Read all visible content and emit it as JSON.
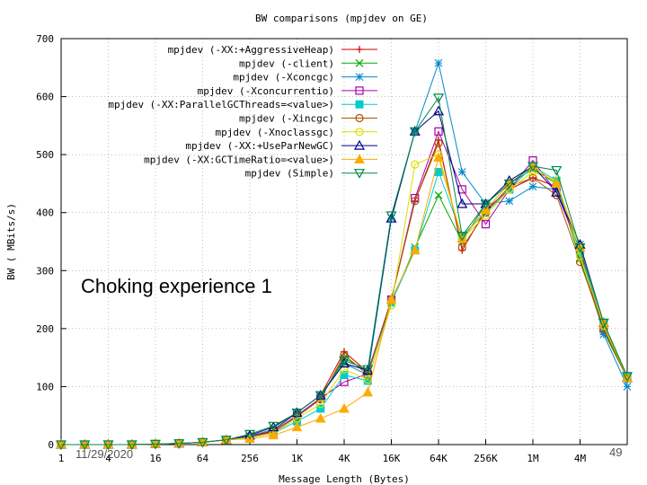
{
  "chart_data": {
    "type": "line",
    "title": "BW comparisons (mpjdev on GE)",
    "xlabel": "Message Length (Bytes)",
    "ylabel": "BW ( MBits/s)",
    "x_scale": "log2",
    "x": [
      1,
      2,
      4,
      8,
      16,
      32,
      64,
      128,
      256,
      512,
      1024,
      2048,
      4096,
      8192,
      16384,
      32768,
      65536,
      131072,
      262144,
      524288,
      1048576,
      2097152,
      4194304,
      8388608,
      16777216
    ],
    "x_tick_labels": [
      "1",
      "4",
      "16",
      "64",
      "256",
      "1K",
      "4K",
      "16K",
      "64K",
      "256K",
      "1M",
      "4M"
    ],
    "y_ticks": [
      "0",
      "100",
      "200",
      "300",
      "400",
      "500",
      "600",
      "700"
    ],
    "ylim": [
      0,
      700
    ],
    "grid": true,
    "legend_position": "top-left",
    "series": [
      {
        "name": "mpjdev (-XX:+AggressiveHeap)",
        "color": "#cc0000",
        "marker": "plus",
        "values": [
          0,
          0,
          0,
          0,
          1,
          2,
          4,
          8,
          14,
          24,
          55,
          85,
          160,
          125,
          250,
          420,
          525,
          335,
          405,
          440,
          460,
          445,
          330,
          195,
          115
        ]
      },
      {
        "name": "mpjdev (-client)",
        "color": "#00aa00",
        "marker": "cross",
        "values": [
          0,
          0,
          0,
          0,
          1,
          2,
          4,
          8,
          13,
          22,
          50,
          80,
          150,
          125,
          245,
          340,
          430,
          350,
          415,
          450,
          475,
          450,
          320,
          195,
          115
        ]
      },
      {
        "name": "mpjdev (-Xconcgc)",
        "color": "#0088cc",
        "marker": "star",
        "values": [
          0,
          0,
          0,
          0,
          1,
          2,
          4,
          8,
          15,
          26,
          55,
          85,
          140,
          120,
          390,
          540,
          658,
          470,
          415,
          420,
          445,
          440,
          345,
          190,
          100
        ]
      },
      {
        "name": "mpjdev (-Xconcurrentio)",
        "color": "#aa00aa",
        "marker": "square",
        "values": [
          0,
          0,
          0,
          0,
          1,
          2,
          4,
          8,
          13,
          22,
          50,
          80,
          108,
          122,
          250,
          425,
          540,
          440,
          380,
          440,
          490,
          435,
          335,
          200,
          115
        ]
      },
      {
        "name": "mpjdev (-XX:ParallelGCThreads=<value>)",
        "color": "#00cccc",
        "marker": "filled-square",
        "values": [
          0,
          0,
          0,
          0,
          1,
          2,
          4,
          8,
          12,
          20,
          40,
          62,
          120,
          110,
          245,
          335,
          470,
          360,
          400,
          440,
          480,
          455,
          330,
          210,
          118
        ]
      },
      {
        "name": "mpjdev (-Xincgc)",
        "color": "#aa5500",
        "marker": "circle",
        "values": [
          0,
          0,
          0,
          0,
          1,
          2,
          4,
          8,
          12,
          22,
          48,
          78,
          155,
          120,
          250,
          420,
          520,
          340,
          400,
          445,
          460,
          430,
          315,
          200,
          115
        ]
      },
      {
        "name": "mpjdev (-Xnoclassgc)",
        "color": "#dddd00",
        "marker": "circle",
        "values": [
          0,
          0,
          0,
          0,
          1,
          2,
          4,
          8,
          12,
          20,
          45,
          70,
          130,
          112,
          240,
          483,
          500,
          355,
          395,
          440,
          470,
          455,
          325,
          205,
          115
        ]
      },
      {
        "name": "mpjdev (-XX:+UseParNewGC)",
        "color": "#000088",
        "marker": "triangle",
        "values": [
          0,
          0,
          0,
          0,
          1,
          2,
          4,
          8,
          16,
          30,
          55,
          85,
          140,
          128,
          390,
          540,
          575,
          415,
          415,
          455,
          480,
          435,
          345,
          210,
          115
        ]
      },
      {
        "name": "mpjdev (-XX:GCTimeRatio=<value>)",
        "color": "#ffaa00",
        "marker": "filled-triangle",
        "values": [
          0,
          0,
          0,
          0,
          1,
          2,
          4,
          8,
          10,
          16,
          30,
          45,
          62,
          90,
          250,
          335,
          495,
          355,
          405,
          450,
          480,
          450,
          340,
          210,
          115
        ]
      },
      {
        "name": "mpjdev (Simple)",
        "color": "#008844",
        "marker": "down-triangle",
        "values": [
          0,
          0,
          0,
          0,
          1,
          2,
          4,
          8,
          18,
          32,
          55,
          85,
          145,
          130,
          395,
          540,
          598,
          360,
          415,
          450,
          480,
          473,
          340,
          210,
          118
        ]
      }
    ]
  },
  "annotation": "Choking experience 1",
  "footer": {
    "date": "11/29/2020",
    "page": "49"
  }
}
